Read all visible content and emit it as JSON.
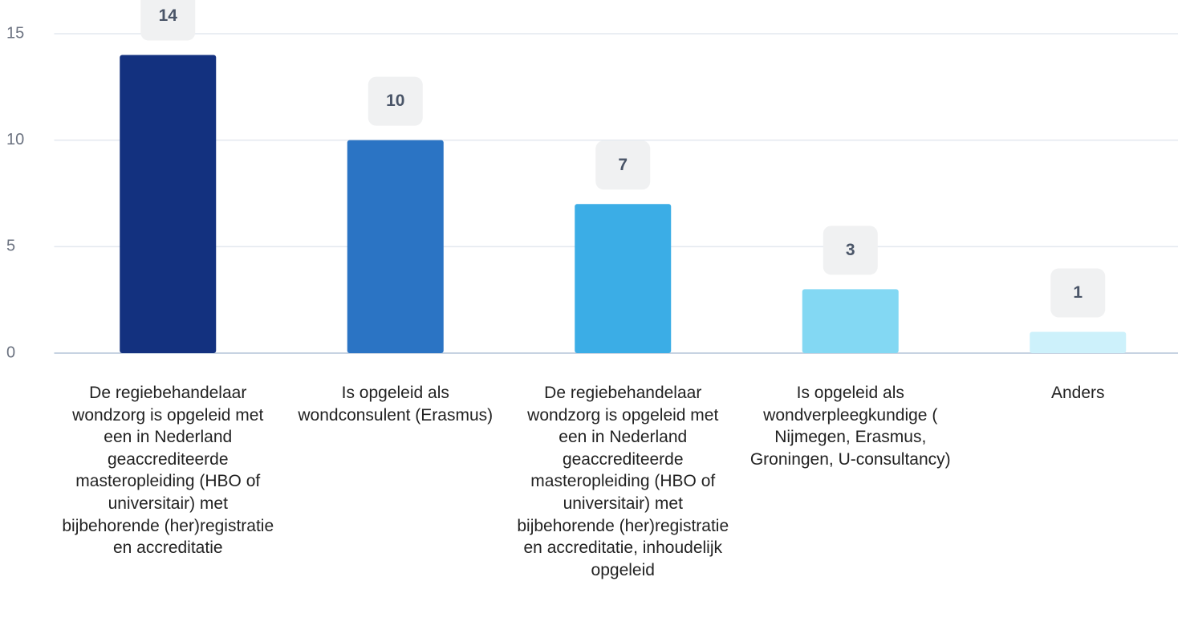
{
  "chart_data": {
    "type": "bar",
    "categories": [
      "De regiebehandelaar wondzorg is opgeleid met een in Nederland geaccrediteerde masteropleiding (HBO of universitair) met bijbehorende (her)registratie en accreditatie",
      "Is opgeleid als wondconsulent (Erasmus)",
      "De regiebehandelaar wondzorg is opgeleid met een in Nederland geaccrediteerde masteropleiding (HBO of universitair) met bijbehorende (her)registratie en accreditatie, inhoudelijk opgeleid",
      "Is opgeleid als wondverpleegkundige ( Nijmegen, Erasmus, Groningen, U-consultancy)",
      "Anders"
    ],
    "values": [
      14,
      10,
      7,
      3,
      1
    ],
    "colors": [
      "#13317f",
      "#2b74c4",
      "#3bade6",
      "#83d8f3",
      "#cdf1fb"
    ],
    "ylim": [
      0,
      15
    ],
    "yticks": [
      0,
      5,
      10,
      15
    ],
    "grid": true
  }
}
